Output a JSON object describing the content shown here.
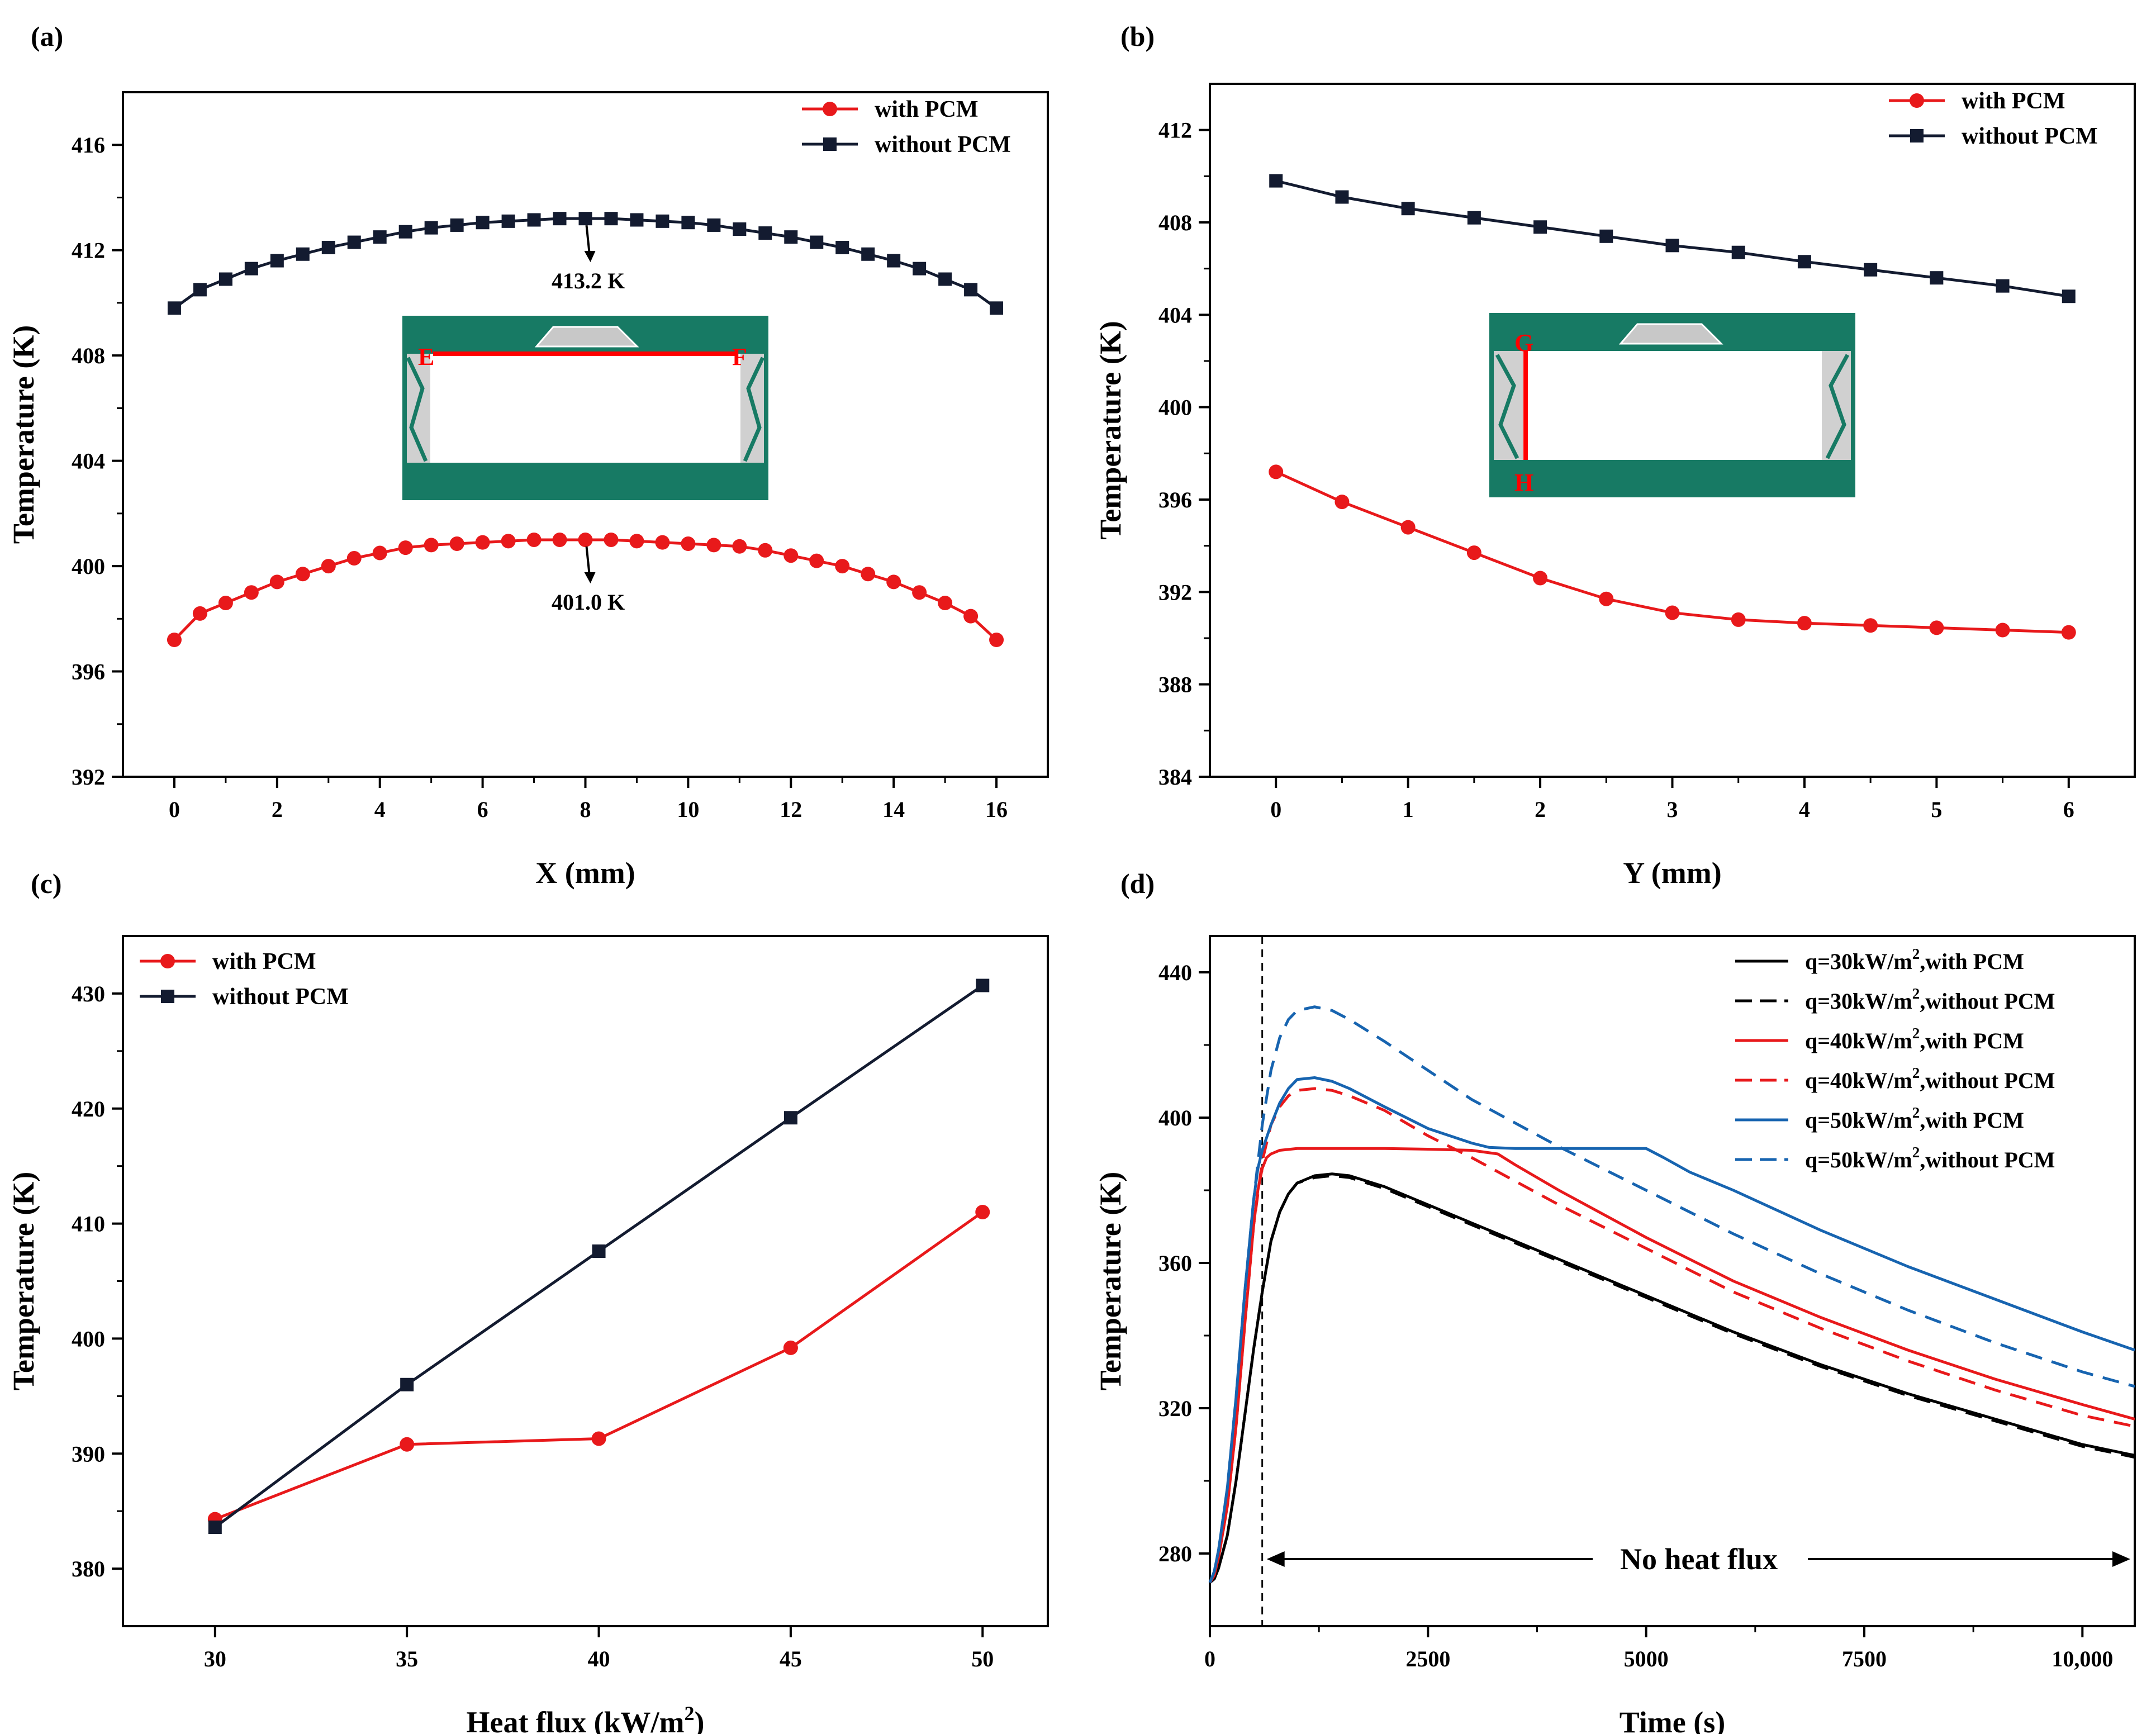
{
  "chart_data": [
    {
      "panel": "(a)",
      "type": "line",
      "xlabel": "X (mm)",
      "ylabel": "Temperature (K)",
      "xlim": [
        -1,
        17
      ],
      "ylim": [
        392,
        418
      ],
      "xticks": [
        0,
        2,
        4,
        6,
        8,
        10,
        12,
        14,
        16
      ],
      "yticks": [
        392,
        396,
        400,
        404,
        408,
        412,
        416
      ],
      "xtick_labels": [
        "0",
        "2",
        "4",
        "6",
        "8",
        "10",
        "12",
        "14",
        "16"
      ],
      "ytick_labels": [
        "392",
        "396",
        "400",
        "404",
        "408",
        "412",
        "416"
      ],
      "legend": "top-right",
      "series": [
        {
          "name": "with PCM",
          "color": "#e8191b",
          "marker": "circle",
          "x": [
            0,
            0.5,
            1,
            1.5,
            2,
            2.5,
            3,
            3.5,
            4,
            4.5,
            5,
            5.5,
            6,
            6.5,
            7,
            7.5,
            8,
            8.5,
            9,
            9.5,
            10,
            10.5,
            11,
            11.5,
            12,
            12.5,
            13,
            13.5,
            14,
            14.5,
            15,
            15.5,
            16
          ],
          "y": [
            397.2,
            398.2,
            398.6,
            399.0,
            399.4,
            399.7,
            400.0,
            400.3,
            400.5,
            400.7,
            400.8,
            400.85,
            400.9,
            400.95,
            401.0,
            401.0,
            401.0,
            401.0,
            400.95,
            400.9,
            400.85,
            400.8,
            400.75,
            400.6,
            400.4,
            400.2,
            400.0,
            399.7,
            399.4,
            399.0,
            398.6,
            398.1,
            397.2
          ]
        },
        {
          "name": "without PCM",
          "color": "#131b30",
          "marker": "square",
          "x": [
            0,
            0.5,
            1,
            1.5,
            2,
            2.5,
            3,
            3.5,
            4,
            4.5,
            5,
            5.5,
            6,
            6.5,
            7,
            7.5,
            8,
            8.5,
            9,
            9.5,
            10,
            10.5,
            11,
            11.5,
            12,
            12.5,
            13,
            13.5,
            14,
            14.5,
            15,
            15.5,
            16
          ],
          "y": [
            409.8,
            410.5,
            410.9,
            411.3,
            411.6,
            411.85,
            412.1,
            412.3,
            412.5,
            412.7,
            412.85,
            412.95,
            413.05,
            413.1,
            413.15,
            413.2,
            413.2,
            413.2,
            413.15,
            413.1,
            413.05,
            412.95,
            412.8,
            412.65,
            412.5,
            412.3,
            412.1,
            411.85,
            411.6,
            411.3,
            410.9,
            410.5,
            409.8
          ]
        }
      ],
      "annotations": [
        {
          "text": "413.2 K",
          "x": 8,
          "y": 413.2
        },
        {
          "text": "401.0 K",
          "x": 8,
          "y": 401.0
        }
      ],
      "inset_labels": [
        "E",
        "F"
      ]
    },
    {
      "panel": "(b)",
      "type": "line",
      "xlabel": "Y (mm)",
      "ylabel": "Temperature (K)",
      "xlim": [
        -0.5,
        6.5
      ],
      "ylim": [
        384,
        414
      ],
      "xticks": [
        0,
        1,
        2,
        3,
        4,
        5,
        6
      ],
      "yticks": [
        384,
        388,
        392,
        396,
        400,
        404,
        408,
        412
      ],
      "xtick_labels": [
        "0",
        "1",
        "2",
        "3",
        "4",
        "5",
        "6"
      ],
      "ytick_labels": [
        "384",
        "388",
        "392",
        "396",
        "400",
        "404",
        "408",
        "412"
      ],
      "legend": "top-right",
      "series": [
        {
          "name": "with PCM",
          "color": "#e8191b",
          "marker": "circle",
          "x": [
            0,
            0.5,
            1,
            1.5,
            2,
            2.5,
            3,
            3.5,
            4,
            4.5,
            5,
            5.5,
            6
          ],
          "y": [
            397.2,
            395.9,
            394.8,
            393.7,
            392.6,
            391.7,
            391.1,
            390.8,
            390.65,
            390.55,
            390.45,
            390.35,
            390.25
          ]
        },
        {
          "name": "without PCM",
          "color": "#131b30",
          "marker": "square",
          "x": [
            0,
            0.5,
            1,
            1.5,
            2,
            2.5,
            3,
            3.5,
            4,
            4.5,
            5,
            5.5,
            6
          ],
          "y": [
            409.8,
            409.1,
            408.6,
            408.2,
            407.8,
            407.4,
            407.0,
            406.7,
            406.3,
            405.95,
            405.6,
            405.25,
            404.8
          ]
        }
      ],
      "inset_labels": [
        "G",
        "H"
      ]
    },
    {
      "panel": "(c)",
      "type": "line",
      "xlabel": "Heat flux (kW/m",
      "xlabel_sup": "2",
      "xlabel_tail": ")",
      "ylabel": "Temperature (K)",
      "xlim": [
        27.6,
        51.7
      ],
      "ylim": [
        375,
        435
      ],
      "xticks": [
        30,
        35,
        40,
        45,
        50
      ],
      "yticks": [
        380,
        390,
        400,
        410,
        420,
        430
      ],
      "xtick_labels": [
        "30",
        "35",
        "40",
        "45",
        "50"
      ],
      "ytick_labels": [
        "380",
        "390",
        "400",
        "410",
        "420",
        "430"
      ],
      "legend": "top-left",
      "series": [
        {
          "name": "with PCM",
          "color": "#e8191b",
          "marker": "circle",
          "x": [
            30,
            35,
            40,
            45,
            50
          ],
          "y": [
            384.3,
            390.8,
            391.3,
            399.2,
            411.0
          ]
        },
        {
          "name": "without PCM",
          "color": "#131b30",
          "marker": "square",
          "x": [
            30,
            35,
            40,
            45,
            50
          ],
          "y": [
            383.6,
            396.0,
            407.6,
            419.2,
            430.7
          ]
        }
      ]
    },
    {
      "panel": "(d)",
      "type": "line",
      "xlabel": "Time (s)",
      "ylabel": "Temperature (K)",
      "xlim": [
        0,
        10600
      ],
      "ylim": [
        260,
        450
      ],
      "xticks": [
        0,
        2500,
        5000,
        7500,
        10000
      ],
      "yticks": [
        280,
        320,
        360,
        400,
        440
      ],
      "xtick_labels": [
        "0",
        "2500",
        "5000",
        "7500",
        "10,000"
      ],
      "ytick_labels": [
        "280",
        "320",
        "360",
        "400",
        "440"
      ],
      "legend": "top-right",
      "vline_x": 600,
      "arrow_text": "No heat flux",
      "series": [
        {
          "name": "q=30kW/m",
          "unit_sup": "2",
          "name_tail": ",with PCM",
          "color": "#000000",
          "dash": false,
          "x": [
            0,
            50,
            100,
            200,
            300,
            400,
            500,
            600,
            700,
            800,
            900,
            1000,
            1200,
            1400,
            1600,
            2000,
            3000,
            4000,
            5000,
            6000,
            7000,
            8000,
            9000,
            10000,
            10600
          ],
          "y": [
            272,
            273,
            276,
            285,
            300,
            318,
            336,
            352,
            366,
            374,
            379,
            382,
            384,
            384.5,
            384,
            381,
            371,
            361,
            351,
            341,
            332,
            324,
            317,
            310,
            307
          ]
        },
        {
          "name": "q=30kW/m",
          "unit_sup": "2",
          "name_tail": ",without PCM",
          "color": "#000000",
          "dash": true,
          "x": [
            0,
            50,
            100,
            200,
            300,
            400,
            500,
            600,
            700,
            800,
            900,
            1000,
            1200,
            1400,
            1600,
            2000,
            3000,
            4000,
            5000,
            6000,
            7000,
            8000,
            9000,
            10000,
            10600
          ],
          "y": [
            272,
            273,
            276,
            285,
            300,
            318,
            336,
            352,
            366,
            374,
            379,
            382,
            383.5,
            384,
            383.5,
            380.5,
            370.5,
            360.5,
            350.5,
            340.5,
            331.5,
            323.5,
            316.5,
            309.5,
            306.5
          ]
        },
        {
          "name": "q=40kW/m",
          "unit_sup": "2",
          "name_tail": ",with PCM",
          "color": "#e8191b",
          "dash": false,
          "x": [
            0,
            50,
            100,
            200,
            300,
            400,
            500,
            550,
            600,
            650,
            700,
            800,
            1000,
            1500,
            2000,
            2500,
            3000,
            3300,
            3500,
            4000,
            5000,
            6000,
            7000,
            8000,
            9000,
            10000,
            10600
          ],
          "y": [
            272,
            274,
            279,
            293,
            315,
            343,
            370,
            380,
            386,
            389,
            390,
            391,
            391.5,
            391.5,
            391.5,
            391.3,
            391,
            390,
            387,
            380,
            367,
            355,
            345,
            336,
            328,
            321,
            317
          ]
        },
        {
          "name": "q=40kW/m",
          "unit_sup": "2",
          "name_tail": ",without PCM",
          "color": "#e8191b",
          "dash": true,
          "x": [
            0,
            50,
            100,
            200,
            300,
            400,
            500,
            600,
            700,
            800,
            900,
            1000,
            1200,
            1400,
            1600,
            2000,
            2500,
            3000,
            4000,
            5000,
            6000,
            7000,
            8000,
            9000,
            10000,
            10600
          ],
          "y": [
            272,
            274,
            279,
            293,
            315,
            343,
            370,
            388,
            398,
            403,
            406,
            407.5,
            408,
            407.5,
            406,
            402,
            395,
            389,
            376,
            364,
            352,
            342,
            333,
            325,
            318,
            315
          ]
        },
        {
          "name": "q=50kW/m",
          "unit_sup": "2",
          "name_tail": ",with PCM",
          "color": "#1764b0",
          "dash": false,
          "x": [
            0,
            50,
            100,
            200,
            300,
            400,
            500,
            550,
            600,
            700,
            800,
            900,
            1000,
            1200,
            1400,
            1600,
            2000,
            2500,
            3000,
            3200,
            3500,
            4000,
            4500,
            5000,
            5200,
            5500,
            6000,
            7000,
            8000,
            9000,
            10000,
            10600
          ],
          "y": [
            272,
            275,
            281,
            298,
            323,
            352,
            377,
            386,
            391,
            398,
            404,
            408,
            410.5,
            411,
            410,
            408,
            403,
            397,
            393,
            391.8,
            391.5,
            391.5,
            391.5,
            391.5,
            389,
            385,
            380,
            369,
            359,
            350,
            341,
            336
          ]
        },
        {
          "name": "q=50kW/m",
          "unit_sup": "2",
          "name_tail": ",without PCM",
          "color": "#1764b0",
          "dash": true,
          "x": [
            0,
            50,
            100,
            200,
            300,
            400,
            500,
            600,
            700,
            800,
            900,
            1000,
            1200,
            1400,
            1600,
            2000,
            2500,
            3000,
            4000,
            5000,
            6000,
            7000,
            8000,
            9000,
            10000,
            10600
          ],
          "y": [
            272,
            275,
            281,
            298,
            323,
            352,
            377,
            398,
            413,
            422,
            427,
            429.5,
            430.5,
            429.5,
            427,
            421,
            413,
            405,
            392,
            380,
            368,
            357,
            347,
            338,
            330,
            326
          ]
        }
      ]
    }
  ],
  "panel_labels": [
    "(a)",
    "(b)",
    "(c)",
    "(d)"
  ]
}
